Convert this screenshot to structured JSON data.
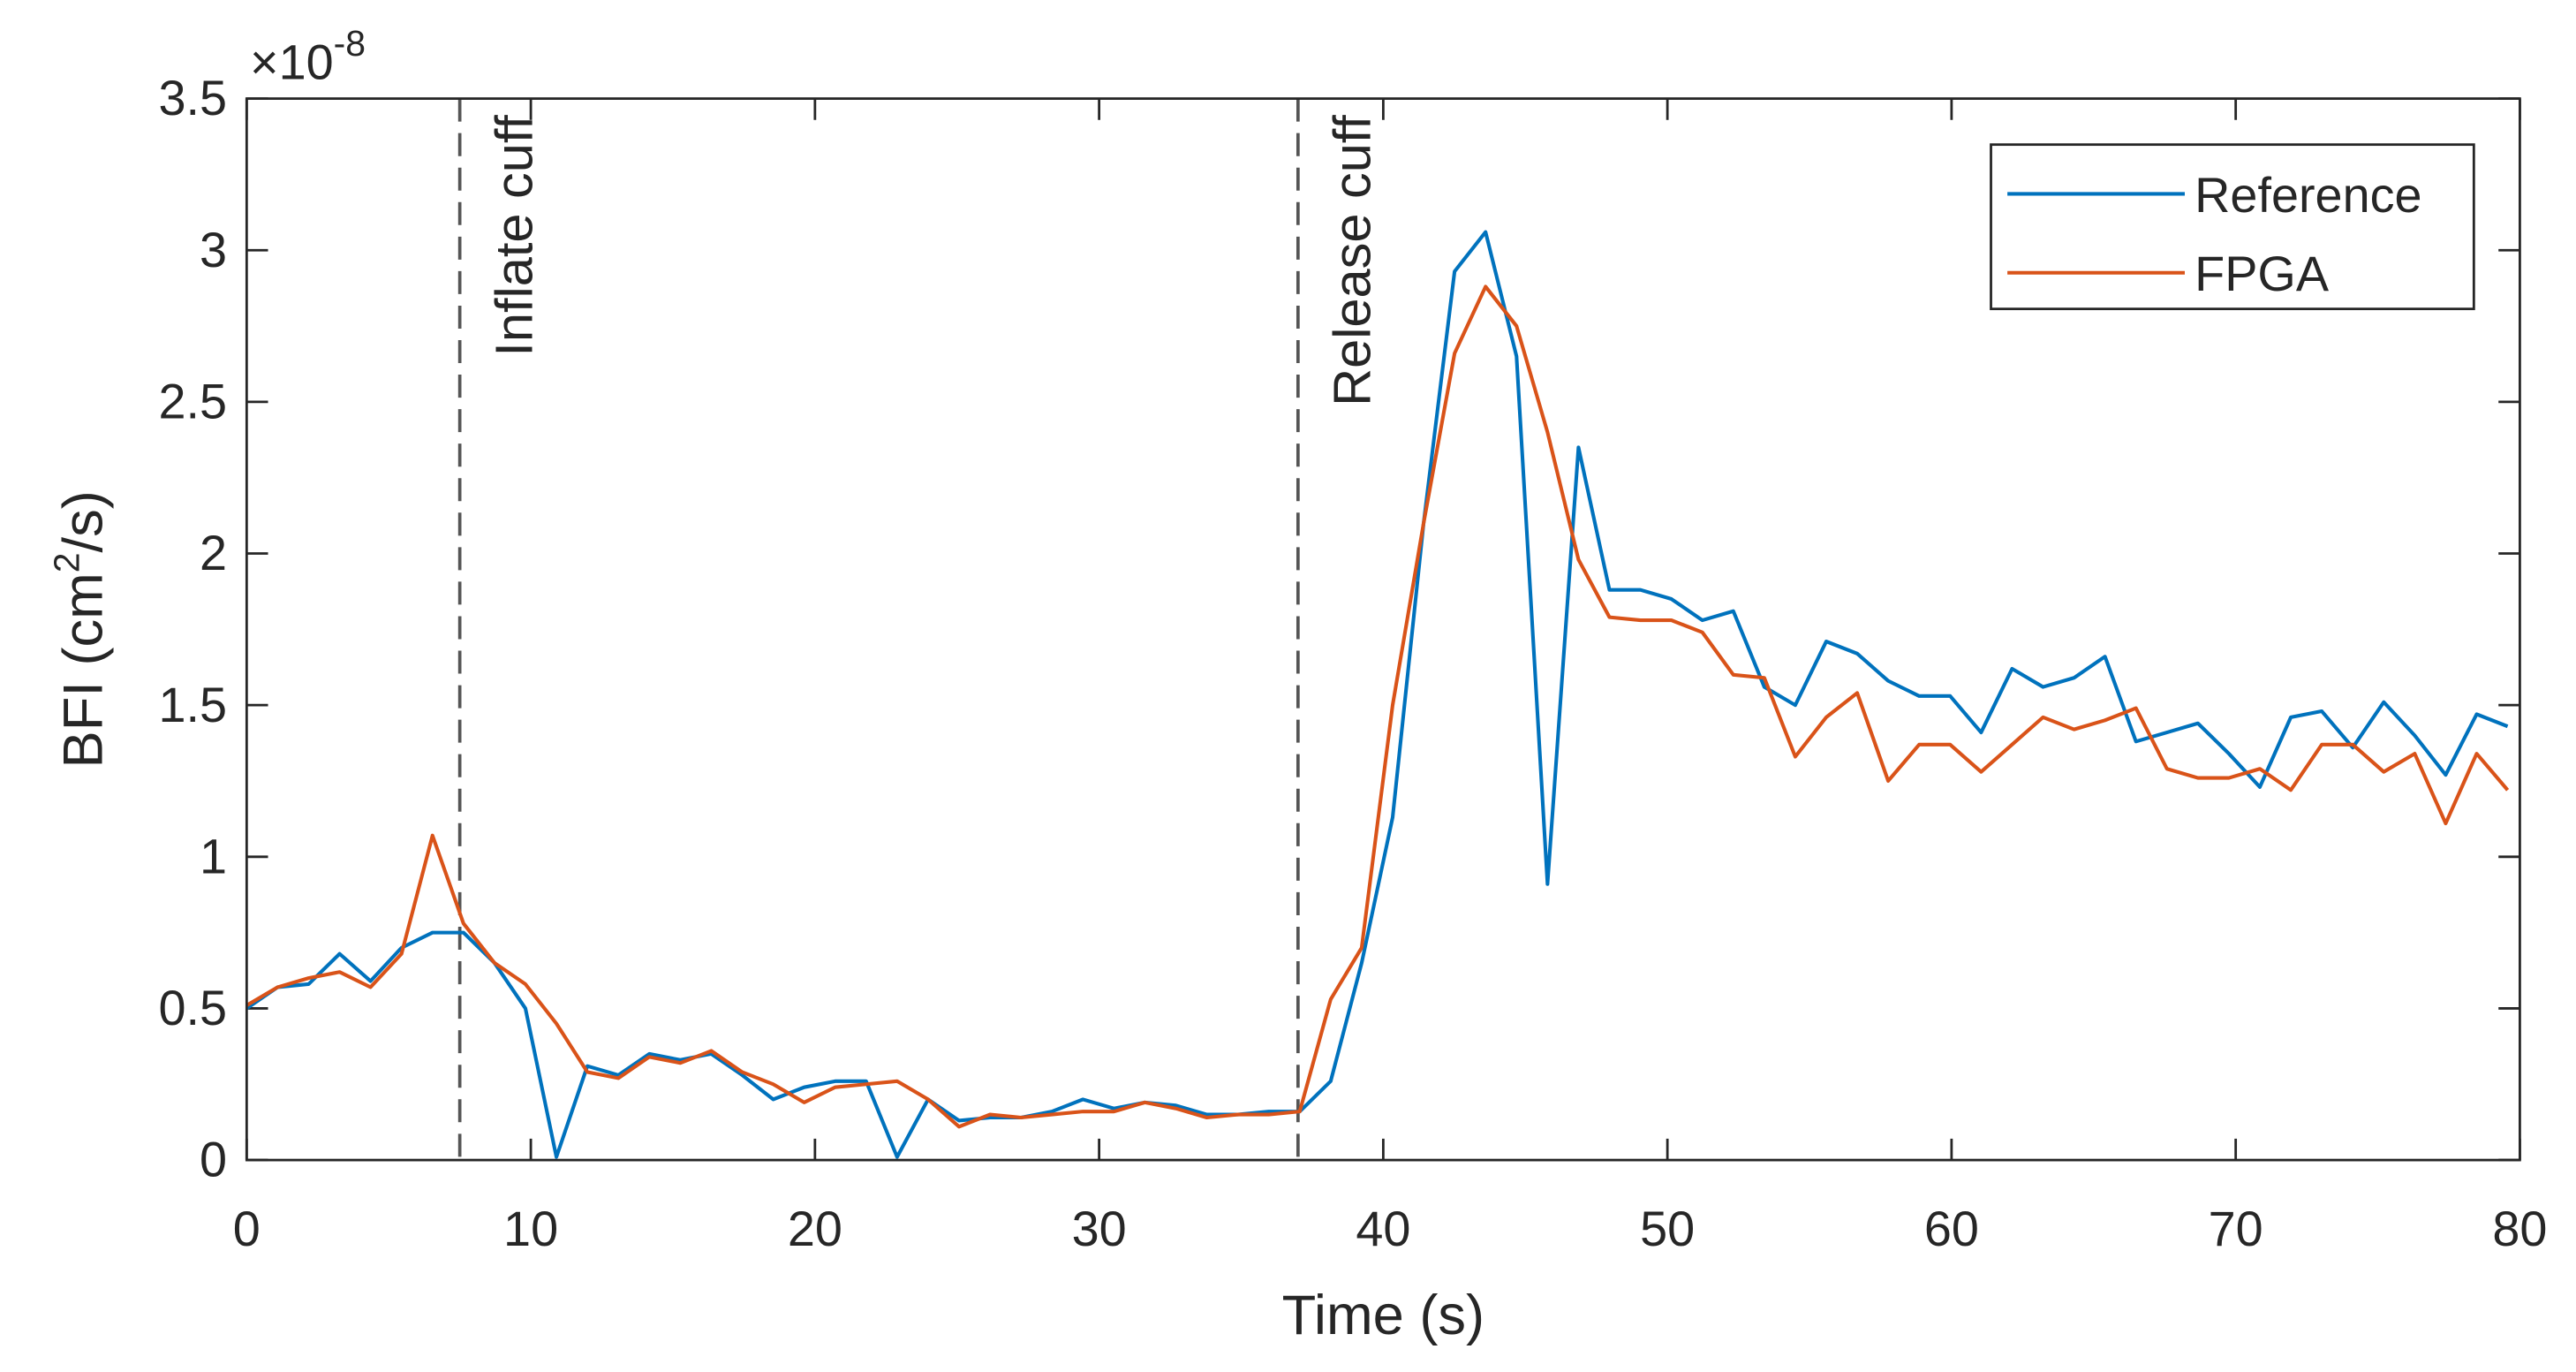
{
  "chart_data": {
    "type": "line",
    "xlabel": "Time (s)",
    "ylabel_parts": [
      "BFI (cm",
      "2",
      "/s)"
    ],
    "y_exponent_base": "×10",
    "y_exponent_power": "-8",
    "xlim": [
      0,
      80
    ],
    "xticks": [
      0,
      10,
      20,
      30,
      40,
      50,
      60,
      70,
      80
    ],
    "ylim": [
      0,
      3.5
    ],
    "yticks": [
      0,
      0.5,
      1,
      1.5,
      2,
      2.5,
      3,
      3.5
    ],
    "legend": "upper right",
    "grid": false,
    "annotations": [
      {
        "x": 7.5,
        "text": "Inflate cuff"
      },
      {
        "x": 37,
        "text": "Release cuff"
      }
    ],
    "x": [
      0,
      1.09,
      2.18,
      3.27,
      4.36,
      5.45,
      6.54,
      7.63,
      8.72,
      9.81,
      10.9,
      11.99,
      13.08,
      14.17,
      15.26,
      16.35,
      17.44,
      18.53,
      19.62,
      20.71,
      21.8,
      22.89,
      23.98,
      25.07,
      26.16,
      27.25,
      28.34,
      29.43,
      30.52,
      31.61,
      32.7,
      33.79,
      34.88,
      35.97,
      37.06,
      38.15,
      39.24,
      40.33,
      41.42,
      42.51,
      43.6,
      44.69,
      45.78,
      46.87,
      47.96,
      49.05,
      50.14,
      51.23,
      52.32,
      53.41,
      54.5,
      55.59,
      56.68,
      57.77,
      58.86,
      59.95,
      61.04,
      62.13,
      63.22,
      64.31,
      65.4,
      66.49,
      67.58,
      68.67,
      69.76,
      70.85,
      71.94,
      73.03,
      74.12,
      75.21,
      76.3,
      77.39,
      78.48,
      79.57
    ],
    "series": [
      {
        "name": "Reference",
        "color": "#0072bd",
        "values": [
          0.5,
          0.57,
          0.58,
          0.68,
          0.59,
          0.7,
          0.75,
          0.75,
          0.65,
          0.5,
          0.01,
          0.31,
          0.28,
          0.35,
          0.33,
          0.35,
          0.28,
          0.2,
          0.24,
          0.26,
          0.26,
          0.01,
          0.2,
          0.13,
          0.14,
          0.14,
          0.16,
          0.2,
          0.17,
          0.19,
          0.18,
          0.15,
          0.15,
          0.16,
          0.16,
          0.26,
          0.65,
          1.13,
          2.1,
          2.93,
          3.06,
          2.65,
          0.91,
          2.35,
          1.88,
          1.88,
          1.85,
          1.78,
          1.81,
          1.56,
          1.5,
          1.71,
          1.67,
          1.58,
          1.53,
          1.53,
          1.41,
          1.62,
          1.56,
          1.59,
          1.66,
          1.38,
          1.41,
          1.44,
          1.34,
          1.23,
          1.46,
          1.48,
          1.36,
          1.51,
          1.4,
          1.27,
          1.47,
          1.43
        ]
      },
      {
        "name": "FPGA",
        "color": "#d95319",
        "values": [
          0.51,
          0.57,
          0.6,
          0.62,
          0.57,
          0.68,
          1.07,
          0.78,
          0.65,
          0.58,
          0.45,
          0.29,
          0.27,
          0.34,
          0.32,
          0.36,
          0.29,
          0.25,
          0.19,
          0.24,
          0.25,
          0.26,
          0.2,
          0.11,
          0.15,
          0.14,
          0.15,
          0.16,
          0.16,
          0.19,
          0.17,
          0.14,
          0.15,
          0.15,
          0.16,
          0.53,
          0.7,
          1.5,
          2.1,
          2.66,
          2.88,
          2.75,
          2.4,
          1.98,
          1.79,
          1.78,
          1.78,
          1.74,
          1.6,
          1.59,
          1.33,
          1.46,
          1.54,
          1.25,
          1.37,
          1.37,
          1.28,
          1.37,
          1.46,
          1.42,
          1.45,
          1.49,
          1.29,
          1.26,
          1.26,
          1.29,
          1.22,
          1.37,
          1.37,
          1.28,
          1.34,
          1.11,
          1.34,
          1.22
        ]
      }
    ]
  }
}
